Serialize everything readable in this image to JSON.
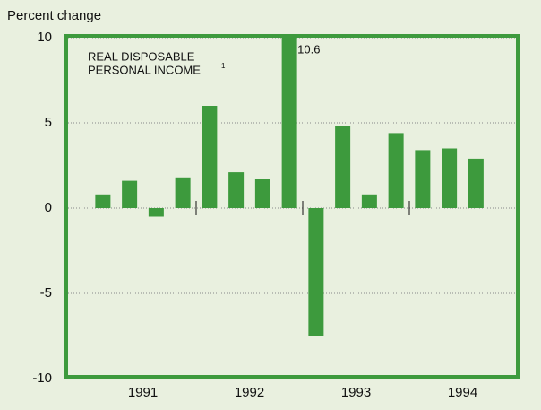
{
  "chart_data": {
    "type": "bar",
    "y_axis_label": "Percent change",
    "annotation": [
      "REAL DISPOSABLE",
      "PERSONAL INCOME"
    ],
    "annotation_footnote": "1",
    "categories": [
      null,
      null,
      null,
      null,
      null,
      null,
      null,
      null,
      null,
      null,
      null,
      null,
      null,
      null,
      null,
      null
    ],
    "groups": [
      "1991",
      "1992",
      "1993",
      "1994"
    ],
    "values": [
      0.8,
      1.6,
      -0.5,
      1.8,
      6.0,
      2.1,
      1.7,
      10.6,
      -7.5,
      4.8,
      0.8,
      4.4,
      3.4,
      3.5,
      2.9,
      null
    ],
    "labeled_points": [
      7
    ],
    "color": "#3d9a3d",
    "ylim": [
      -10,
      10
    ],
    "yticks": [
      -10,
      -5,
      0,
      5,
      10
    ],
    "grid": true
  }
}
